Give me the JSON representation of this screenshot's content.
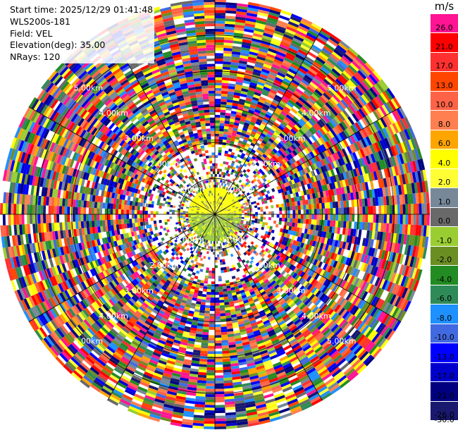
{
  "info": {
    "start_time": "Start time: 2025/12/29 01:41:48",
    "instrument": "WLS200s-181",
    "field": "Field: VEL",
    "elevation": "Elevation(deg): 35.00",
    "nrays": "NRays: 120"
  },
  "colorbar": {
    "unit": "m/s",
    "ticks": [
      "26.0",
      "21.0",
      "17.0",
      "13.0",
      "10.0",
      "8.0",
      "6.0",
      "4.0",
      "2.0",
      "1.0",
      "0.0",
      "-1.0",
      "-2.0",
      "-4.0",
      "-6.0",
      "-8.0",
      "-10.0",
      "-13.0",
      "-17.0",
      "-21.0",
      "-26.0",
      "-30.0"
    ],
    "colors": [
      "#ff1493",
      "#ff0000",
      "#ff3030",
      "#ff4500",
      "#ff6347",
      "#ff7f50",
      "#ffa500",
      "#ffff00",
      "#ffff33",
      "#778899",
      "#696969",
      "#9acd32",
      "#6b8e23",
      "#228b22",
      "#2e8b57",
      "#1e90ff",
      "#4169e1",
      "#0000ff",
      "#0000cd",
      "#000080",
      "#191970"
    ]
  },
  "chart_data": {
    "type": "heatmap",
    "projection": "polar PPI",
    "field": "VEL",
    "units": "m/s",
    "nrays": 120,
    "elevation_deg": 35.0,
    "range_rings_km": [
      1.0,
      2.0,
      3.0,
      4.0,
      5.0
    ],
    "ring_labels": [
      "1.00km",
      "2.00km",
      "3.00km",
      "4.00km",
      "5.00km"
    ],
    "max_range_km": 6.0,
    "value_range": [
      -30.0,
      26.0
    ],
    "grid": true
  }
}
